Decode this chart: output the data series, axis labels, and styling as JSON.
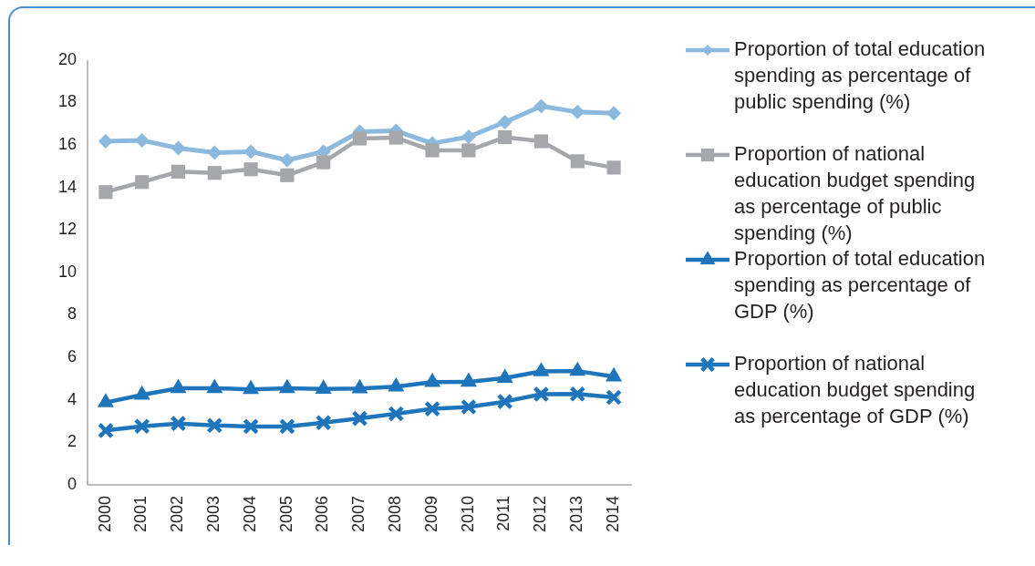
{
  "chart_data": {
    "type": "line",
    "categories": [
      "2000",
      "2001",
      "2002",
      "2003",
      "2004",
      "2005",
      "2006",
      "2007",
      "2008",
      "2009",
      "2010",
      "2011",
      "2012",
      "2013",
      "2014"
    ],
    "series": [
      {
        "name": "Proportion of total education spending as percentage of public spending (%)",
        "color": "#8cb9de",
        "marker": "diamond",
        "values": [
          16.18,
          16.22,
          15.86,
          15.64,
          15.69,
          15.29,
          15.69,
          16.63,
          16.67,
          16.08,
          16.39,
          17.08,
          17.83,
          17.56,
          17.5
        ]
      },
      {
        "name": "Proportion of national education budget spending as percentage of public spending (%)",
        "color": "#a6a7aa",
        "marker": "square",
        "values": [
          13.79,
          14.26,
          14.75,
          14.69,
          14.86,
          14.58,
          15.19,
          16.31,
          16.35,
          15.75,
          15.75,
          16.37,
          16.18,
          15.24,
          14.94
        ]
      },
      {
        "name": "Proportion of total education spending as percentage of GDP (%)",
        "color": "#1f75bc",
        "marker": "triangle",
        "values": [
          3.88,
          4.24,
          4.55,
          4.55,
          4.5,
          4.55,
          4.52,
          4.54,
          4.62,
          4.84,
          4.85,
          5.03,
          5.34,
          5.36,
          5.1
        ]
      },
      {
        "name": "Proportion of national education budget spending as percentage of GDP (%)",
        "color": "#1f75bc",
        "marker": "cross",
        "values": [
          2.56,
          2.76,
          2.89,
          2.8,
          2.75,
          2.75,
          2.93,
          3.13,
          3.35,
          3.58,
          3.67,
          3.92,
          4.27,
          4.28,
          4.12
        ]
      }
    ],
    "ylim": [
      0,
      20
    ],
    "yticks": [
      0,
      2,
      4,
      6,
      8,
      10,
      12,
      14,
      16,
      18,
      20
    ],
    "legend": "right",
    "line_style": "solid"
  }
}
